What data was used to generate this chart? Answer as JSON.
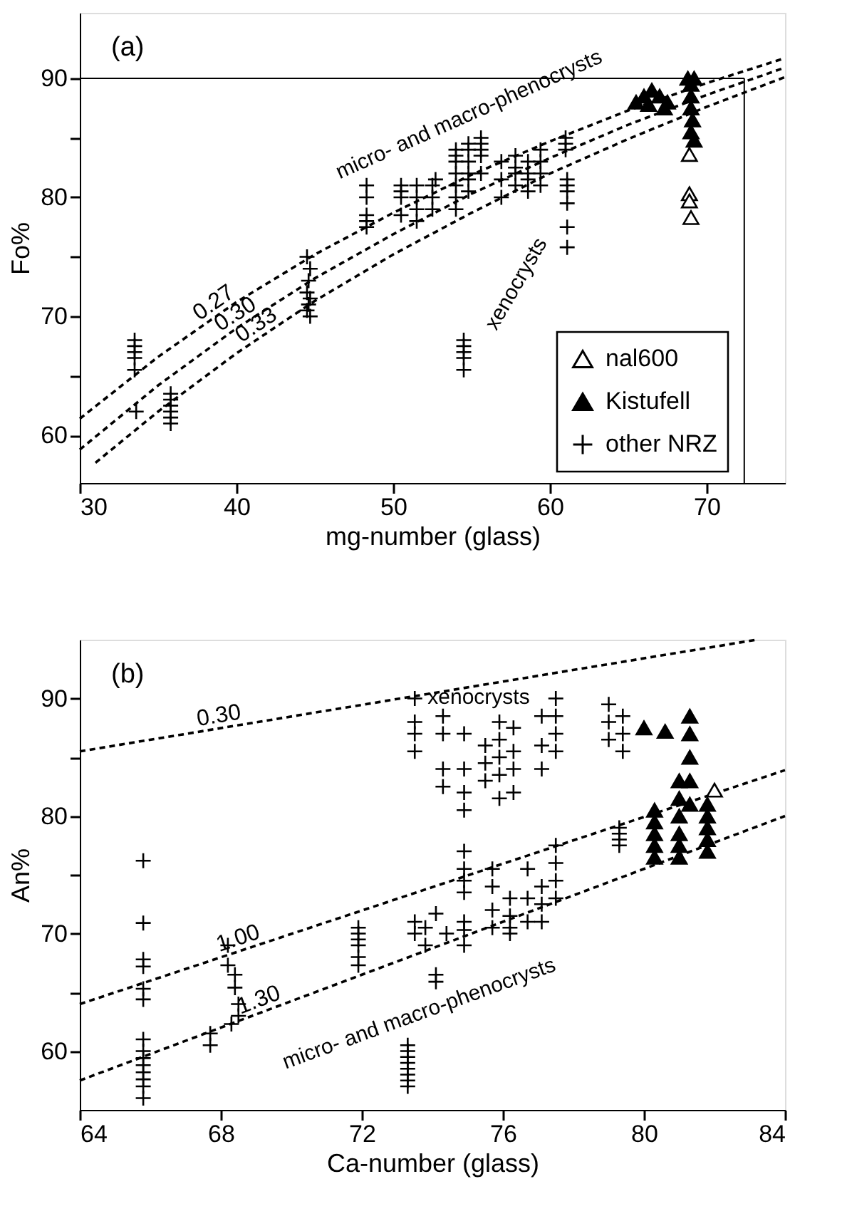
{
  "chart_data": [
    {
      "type": "scatter",
      "xlabel": "mg-number (glass)",
      "ylabel": "Fo%",
      "xlim": [
        30,
        75
      ],
      "ylim": [
        56,
        95.5
      ],
      "xticks": [
        30,
        40,
        50,
        60,
        70
      ],
      "yticks": [
        60,
        {
          "value": 65,
          "label": null
        },
        70,
        {
          "value": 75,
          "label": null
        },
        80,
        {
          "value": 85,
          "label": null
        },
        90
      ],
      "grid": false,
      "legend": "bottom right",
      "annotations": [
        "(a)",
        "micro- and macro-phenocrysts",
        "xenocrysts"
      ],
      "ref_lines": [
        {
          "axis": "y",
          "value": 90,
          "label": null
        },
        {
          "axis": "x",
          "value": 72.4,
          "label": null
        }
      ],
      "series": [
        {
          "name": "nal600",
          "type": "scatter",
          "marker": "triangle",
          "color": "#ffffff",
          "x": [
            68.9,
            68.9,
            68.9,
            69.0
          ],
          "values": [
            83.6,
            80.3,
            79.7,
            78.3
          ]
        },
        {
          "name": "Kistufell",
          "type": "scatter",
          "marker": "triangle",
          "color": "#000000",
          "x": [
            65.5,
            66.0,
            66.3,
            66.5,
            67.0,
            67.3,
            67.5,
            68.8,
            69.0,
            69.2,
            69.0,
            69.0,
            69.1,
            69.0,
            69.2
          ],
          "values": [
            88,
            88.5,
            87.8,
            89,
            88.5,
            87.5,
            88,
            90,
            89.5,
            90,
            88.5,
            87.5,
            86.5,
            85.5,
            84.8
          ]
        },
        {
          "name": "other NRZ",
          "type": "scatter",
          "marker": "cross",
          "color": "#000000",
          "x": [
            33.5,
            33.5,
            33.5,
            33.5,
            33.5,
            33.6,
            35.8,
            35.8,
            35.8,
            35.8,
            35.8,
            35.8,
            44.5,
            44.7,
            44.6,
            44.5,
            44.7,
            44.6,
            44.5,
            44.7,
            48.3,
            48.3,
            48.3,
            48.3,
            48.3,
            50.5,
            50.5,
            50.5,
            50.5,
            51.5,
            51.5,
            51.5,
            51.5,
            52.5,
            52.5,
            52.5,
            52.7,
            54.0,
            54.0,
            54.0,
            54.0,
            54.0,
            54.0,
            54.0,
            54.8,
            54.8,
            54.8,
            54.8,
            54.8,
            54.8,
            55.6,
            55.6,
            55.6,
            55.6,
            55.6,
            56.9,
            56.9,
            56.9,
            57.8,
            57.8,
            57.8,
            57.8,
            58.6,
            58.6,
            58.6,
            58.6,
            59.4,
            59.4,
            59.4,
            59.4,
            61.0,
            61.0,
            61.0,
            61.1,
            61.1,
            61.1,
            61.1,
            61.1,
            61.1,
            54.5,
            54.5,
            54.5,
            54.5,
            54.5
          ],
          "values": [
            68,
            67.5,
            67,
            66.5,
            65.5,
            62,
            63.5,
            63,
            62.5,
            62,
            61.5,
            61,
            75,
            74,
            73,
            72,
            71.5,
            71,
            70.5,
            70,
            81,
            80,
            78.5,
            78,
            77.5,
            81,
            80.5,
            80,
            78.5,
            81,
            80,
            79,
            78,
            81,
            80,
            79,
            81.5,
            84,
            83.5,
            83,
            82,
            81,
            80,
            79,
            84.5,
            84,
            83,
            82,
            81.5,
            80.5,
            85,
            84.5,
            84,
            83.5,
            82,
            83,
            81.5,
            80,
            83.5,
            82.5,
            82,
            81,
            83,
            82,
            81.5,
            80.5,
            84,
            83,
            82,
            81,
            85,
            84.5,
            84,
            81.5,
            81,
            80.5,
            79.5,
            77.5,
            75.8,
            68,
            67.5,
            67,
            66.5,
            65.5
          ]
        },
        {
          "name": "0.27",
          "type": "line",
          "line_style": "dashed",
          "color": "#000000",
          "x": [
            30,
            35,
            40,
            45,
            50,
            55,
            60,
            65,
            70,
            75
          ],
          "values": [
            61.4,
            66.6,
            71.2,
            75.2,
            78.7,
            81.9,
            84.7,
            87.3,
            89.6,
            91.7
          ]
        },
        {
          "name": "0.30",
          "type": "line",
          "line_style": "dashed",
          "color": "#000000",
          "x": [
            30,
            35,
            40,
            45,
            50,
            55,
            60,
            65,
            70,
            75
          ],
          "values": [
            58.8,
            64.2,
            69.0,
            73.2,
            76.9,
            80.3,
            83.3,
            86.1,
            88.6,
            90.9
          ]
        },
        {
          "name": "0.33",
          "type": "line",
          "line_style": "dashed",
          "color": "#000000",
          "x": [
            31,
            35,
            40,
            45,
            50,
            55,
            60,
            65,
            70,
            75
          ],
          "values": [
            57.7,
            62.0,
            66.9,
            71.3,
            75.2,
            78.7,
            82.0,
            84.9,
            87.6,
            90.1
          ]
        }
      ]
    },
    {
      "type": "scatter",
      "xlabel": "Ca-number (glass)",
      "ylabel": "An%",
      "xlim": [
        64,
        84
      ],
      "ylim": [
        55,
        95
      ],
      "xticks": [
        64,
        68,
        72,
        76,
        80,
        84
      ],
      "yticks": [
        60,
        {
          "value": 65,
          "label": null
        },
        70,
        {
          "value": 75,
          "label": null
        },
        80,
        {
          "value": 85,
          "label": null
        },
        90
      ],
      "grid": false,
      "annotations": [
        "(b)",
        "xenocrysts",
        "micro- and macro-phenocrysts"
      ],
      "series": [
        {
          "type": "scatter",
          "marker": "triangle",
          "color": "#ffffff",
          "x": [
            82.0
          ],
          "values": [
            82.2
          ]
        },
        {
          "type": "scatter",
          "marker": "triangle",
          "color": "#000000",
          "x": [
            80.0,
            80.6,
            81.3,
            81.3,
            81.3,
            81.3,
            81.3,
            80.3,
            80.3,
            80.3,
            80.3,
            80.3,
            81.0,
            81.0,
            81.0,
            81.0,
            81.0,
            81.0,
            81.8,
            81.8,
            81.8,
            81.8,
            81.8
          ],
          "values": [
            87.5,
            87.2,
            88.5,
            87,
            85,
            83,
            81,
            80.5,
            79.5,
            78.5,
            77.5,
            76.5,
            83,
            81.5,
            80,
            78.5,
            77.5,
            76.5,
            81,
            80,
            79,
            78,
            77
          ]
        },
        {
          "type": "scatter",
          "marker": "cross",
          "color": "#000000",
          "x": [
            65.8,
            65.8,
            65.8,
            65.8,
            65.8,
            65.8,
            65.8,
            65.8,
            65.8,
            65.8,
            65.8,
            65.8,
            65.8,
            65.8,
            68.2,
            68.2,
            68.4,
            68.4,
            68.5,
            68.5,
            68.3,
            67.7,
            67.7,
            71.9,
            71.9,
            71.9,
            71.9,
            71.9,
            71.9,
            73.3,
            73.3,
            73.3,
            73.3,
            73.3,
            73.3,
            73.3,
            73.3,
            73.5,
            73.5,
            73.8,
            73.8,
            74.1,
            74.1,
            74.1,
            74.4,
            74.9,
            74.9,
            74.9,
            74.9,
            74.9,
            74.9,
            74.9,
            75.7,
            75.7,
            75.7,
            75.7,
            76.2,
            76.2,
            76.2,
            76.2,
            76.7,
            76.7,
            76.7,
            77.1,
            77.1,
            77.1,
            77.5,
            77.5,
            77.5,
            77.5,
            79.3,
            79.3,
            79.3,
            79.3,
            73.5,
            73.5,
            73.5,
            73.5,
            74.3,
            74.3,
            74.3,
            74.3,
            74.9,
            74.9,
            74.9,
            74.9,
            75.5,
            75.5,
            75.5,
            75.9,
            75.9,
            75.9,
            75.9,
            75.9,
            76.3,
            76.3,
            76.3,
            76.3,
            77.1,
            77.1,
            77.1,
            77.5,
            77.5,
            77.5,
            77.5,
            79.0,
            79.0,
            79.0,
            79.4,
            79.4,
            79.4
          ],
          "values": [
            76.2,
            70.9,
            67.8,
            67.2,
            65.3,
            64.4,
            61,
            60,
            59.4,
            58.8,
            58.2,
            57.6,
            57,
            56,
            69,
            67.3,
            66.5,
            65.4,
            64,
            63,
            62.3,
            61.5,
            60.5,
            70.5,
            70,
            69.5,
            69,
            68,
            67.3,
            60.5,
            60,
            59.5,
            59,
            58.5,
            58,
            57.5,
            57,
            71,
            70,
            70.5,
            69,
            71.7,
            66.5,
            65.9,
            70,
            77,
            75.5,
            74.5,
            73.5,
            71,
            70.3,
            69,
            75.5,
            74,
            72,
            70.5,
            73,
            71.5,
            70.5,
            70,
            75.5,
            73,
            71,
            74,
            72.5,
            71,
            77.5,
            76,
            74.5,
            73,
            79,
            78.5,
            78,
            77.5,
            90,
            88,
            87,
            85.5,
            88.5,
            87,
            84,
            82.5,
            87,
            84,
            82,
            80.5,
            86,
            84.5,
            83,
            88,
            86.5,
            85,
            83.5,
            81.5,
            87.5,
            85.5,
            84,
            82,
            88.5,
            86,
            84,
            90,
            88.5,
            87,
            85.5,
            89.5,
            88,
            86.5,
            88.5,
            87,
            85.5
          ]
        },
        {
          "name": "0.30",
          "type": "line",
          "line_style": "dashed",
          "color": "#000000",
          "x": [
            64,
            83.2
          ],
          "values": [
            85.5,
            95
          ]
        },
        {
          "name": "1.00",
          "type": "line",
          "line_style": "dashed",
          "color": "#000000",
          "x": [
            64,
            84
          ],
          "values": [
            64,
            83.9
          ]
        },
        {
          "name": "1.30",
          "type": "line",
          "line_style": "dashed",
          "color": "#000000",
          "x": [
            64,
            84
          ],
          "values": [
            57.5,
            80
          ]
        }
      ]
    }
  ]
}
